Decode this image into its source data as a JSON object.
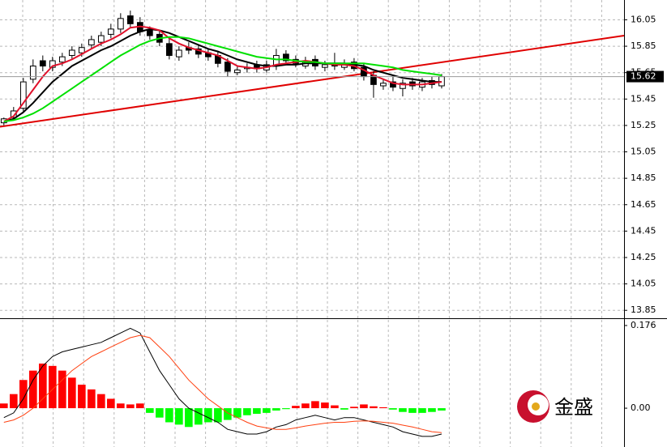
{
  "chart_data": [
    {
      "type": "candlestick",
      "x": [
        0,
        1,
        2,
        3,
        4,
        5,
        6,
        7,
        8,
        9,
        10,
        11,
        12,
        13,
        14,
        15,
        16,
        17,
        18,
        19,
        20,
        21,
        22,
        23,
        24,
        25,
        26,
        27,
        28,
        29,
        30,
        31,
        32,
        33,
        34,
        35,
        36,
        37,
        38,
        39,
        40,
        41,
        42,
        43,
        44,
        45
      ],
      "open": [
        15.27,
        15.31,
        15.38,
        15.6,
        15.74,
        15.69,
        15.73,
        15.78,
        15.8,
        15.86,
        15.88,
        15.94,
        15.98,
        16.08,
        16.03,
        15.97,
        15.94,
        15.87,
        15.77,
        15.84,
        15.83,
        15.8,
        15.78,
        15.73,
        15.65,
        15.68,
        15.71,
        15.67,
        15.7,
        15.79,
        15.75,
        15.7,
        15.75,
        15.69,
        15.72,
        15.69,
        15.73,
        15.69,
        15.63,
        15.55,
        15.58,
        15.53,
        15.58,
        15.54,
        15.59,
        15.55
      ],
      "high": [
        15.31,
        15.39,
        15.61,
        15.75,
        15.78,
        15.77,
        15.8,
        15.85,
        15.87,
        15.93,
        15.96,
        16.02,
        16.1,
        16.12,
        16.07,
        16.0,
        15.97,
        15.91,
        15.85,
        15.88,
        15.86,
        15.83,
        15.81,
        15.76,
        15.7,
        15.72,
        15.74,
        15.74,
        15.83,
        15.82,
        15.78,
        15.77,
        15.78,
        15.74,
        15.8,
        15.75,
        15.76,
        15.72,
        15.66,
        15.6,
        15.62,
        15.6,
        15.61,
        15.61,
        15.62,
        15.64
      ],
      "low": [
        15.25,
        15.29,
        15.35,
        15.57,
        15.66,
        15.66,
        15.7,
        15.75,
        15.77,
        15.83,
        15.85,
        15.91,
        15.95,
        15.99,
        15.93,
        15.9,
        15.85,
        15.75,
        15.74,
        15.79,
        15.76,
        15.74,
        15.69,
        15.62,
        15.63,
        15.65,
        15.65,
        15.65,
        15.67,
        15.71,
        15.69,
        15.68,
        15.67,
        15.66,
        15.67,
        15.67,
        15.66,
        15.59,
        15.46,
        15.52,
        15.51,
        15.47,
        15.52,
        15.51,
        15.53,
        15.53
      ],
      "close": [
        15.3,
        15.36,
        15.58,
        15.7,
        15.7,
        15.74,
        15.77,
        15.82,
        15.84,
        15.9,
        15.93,
        15.98,
        16.06,
        16.02,
        15.96,
        15.93,
        15.88,
        15.78,
        15.82,
        15.82,
        15.79,
        15.77,
        15.72,
        15.66,
        15.67,
        15.69,
        15.68,
        15.71,
        15.78,
        15.74,
        15.72,
        15.74,
        15.7,
        15.71,
        15.7,
        15.72,
        15.68,
        15.62,
        15.56,
        15.57,
        15.54,
        15.57,
        15.55,
        15.58,
        15.56,
        15.62
      ],
      "series": [
        {
          "color": "#000000",
          "values": [
            15.28,
            15.3,
            15.35,
            15.42,
            15.5,
            15.58,
            15.64,
            15.7,
            15.74,
            15.78,
            15.82,
            15.85,
            15.89,
            15.93,
            15.96,
            15.98,
            15.97,
            15.95,
            15.92,
            15.89,
            15.86,
            15.83,
            15.81,
            15.78,
            15.75,
            15.73,
            15.71,
            15.7,
            15.7,
            15.71,
            15.71,
            15.72,
            15.72,
            15.72,
            15.72,
            15.72,
            15.71,
            15.7,
            15.67,
            15.65,
            15.63,
            15.61,
            15.6,
            15.59,
            15.58,
            15.58
          ]
        },
        {
          "color": "#e0102a",
          "values": [
            15.28,
            15.32,
            15.42,
            15.52,
            15.62,
            15.7,
            15.72,
            15.75,
            15.79,
            15.83,
            15.87,
            15.9,
            15.94,
            15.99,
            16.0,
            15.99,
            15.97,
            15.91,
            15.87,
            15.84,
            15.82,
            15.8,
            15.78,
            15.74,
            15.7,
            15.69,
            15.68,
            15.69,
            15.71,
            15.72,
            15.73,
            15.74,
            15.73,
            15.72,
            15.71,
            15.71,
            15.7,
            15.67,
            15.63,
            15.6,
            15.57,
            15.56,
            15.56,
            15.56,
            15.57,
            15.58
          ]
        },
        {
          "color": "#00e000",
          "values": [
            15.28,
            15.29,
            15.31,
            15.34,
            15.38,
            15.43,
            15.48,
            15.53,
            15.58,
            15.63,
            15.68,
            15.73,
            15.78,
            15.82,
            15.86,
            15.89,
            15.91,
            15.92,
            15.92,
            15.91,
            15.89,
            15.87,
            15.85,
            15.83,
            15.81,
            15.79,
            15.77,
            15.76,
            15.75,
            15.75,
            15.74,
            15.73,
            15.73,
            15.72,
            15.72,
            15.72,
            15.72,
            15.72,
            15.71,
            15.7,
            15.69,
            15.67,
            15.66,
            15.65,
            15.64,
            15.63
          ]
        }
      ],
      "trendline": {
        "color": "#e00000",
        "x": [
          -0.4,
          63.75
        ],
        "values": [
          15.24,
          15.93
        ]
      },
      "current_price": 15.62,
      "xlim": [
        -0.4,
        63.75
      ],
      "ylim": [
        13.79,
        16.2
      ],
      "yticks": [
        16.05,
        15.85,
        15.65,
        15.45,
        15.25,
        15.05,
        14.85,
        14.65,
        14.45,
        14.25,
        14.05,
        13.85
      ],
      "grid": true
    },
    {
      "type": "macd",
      "x": [
        0,
        1,
        2,
        3,
        4,
        5,
        6,
        7,
        8,
        9,
        10,
        11,
        12,
        13,
        14,
        15,
        16,
        17,
        18,
        19,
        20,
        21,
        22,
        23,
        24,
        25,
        26,
        27,
        28,
        29,
        30,
        31,
        32,
        33,
        34,
        35,
        36,
        37,
        38,
        39,
        40,
        41,
        42,
        43,
        44,
        45
      ],
      "histogram": {
        "positive_color": "#ff0000",
        "negative_color": "#00ff00",
        "values": [
          0.01,
          0.03,
          0.06,
          0.08,
          0.095,
          0.09,
          0.08,
          0.065,
          0.05,
          0.04,
          0.03,
          0.02,
          0.01,
          0.008,
          0.01,
          -0.01,
          -0.02,
          -0.03,
          -0.035,
          -0.04,
          -0.035,
          -0.03,
          -0.03,
          -0.025,
          -0.02,
          -0.015,
          -0.012,
          -0.01,
          -0.005,
          -0.002,
          0.005,
          0.01,
          0.015,
          0.012,
          0.006,
          -0.003,
          0.003,
          0.008,
          0.004,
          0.002,
          -0.003,
          -0.008,
          -0.01,
          -0.01,
          -0.008,
          -0.005
        ]
      },
      "series": [
        {
          "color": "#000000",
          "values": [
            -0.02,
            -0.01,
            0.02,
            0.06,
            0.09,
            0.11,
            0.12,
            0.125,
            0.13,
            0.135,
            0.14,
            0.15,
            0.16,
            0.17,
            0.16,
            0.12,
            0.08,
            0.05,
            0.02,
            0.0,
            -0.01,
            -0.02,
            -0.03,
            -0.045,
            -0.05,
            -0.055,
            -0.055,
            -0.05,
            -0.04,
            -0.035,
            -0.025,
            -0.02,
            -0.015,
            -0.02,
            -0.025,
            -0.02,
            -0.02,
            -0.025,
            -0.03,
            -0.035,
            -0.04,
            -0.05,
            -0.055,
            -0.06,
            -0.06,
            -0.055
          ]
        },
        {
          "color": "#ff4010",
          "values": [
            -0.03,
            -0.025,
            -0.015,
            0.0,
            0.02,
            0.04,
            0.06,
            0.08,
            0.095,
            0.11,
            0.12,
            0.13,
            0.14,
            0.15,
            0.155,
            0.15,
            0.13,
            0.11,
            0.085,
            0.06,
            0.04,
            0.02,
            0.005,
            -0.01,
            -0.02,
            -0.03,
            -0.038,
            -0.042,
            -0.045,
            -0.045,
            -0.042,
            -0.038,
            -0.035,
            -0.032,
            -0.03,
            -0.03,
            -0.028,
            -0.027,
            -0.028,
            -0.03,
            -0.032,
            -0.036,
            -0.04,
            -0.045,
            -0.05,
            -0.052
          ]
        }
      ],
      "xlim": [
        -0.4,
        63.75
      ],
      "ylim": [
        -0.074,
        0.188
      ],
      "yticks": [
        0.176,
        {
          "value": 0,
          "label": "0.00"
        }
      ],
      "grid": true,
      "watermark": "金盛"
    }
  ]
}
